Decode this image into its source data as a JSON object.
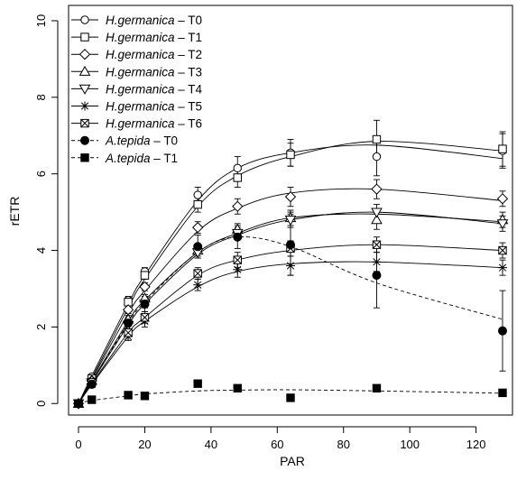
{
  "chart_data": {
    "type": "line",
    "title": "",
    "xlabel": "PAR",
    "ylabel": "rETR",
    "xlim": [
      -3,
      131
    ],
    "ylim": [
      -0.3,
      10.4
    ],
    "xticks": [
      0,
      20,
      40,
      60,
      80,
      100,
      120
    ],
    "yticks": [
      0,
      2,
      4,
      6,
      8,
      10
    ],
    "grid": false,
    "legend_position": "top-left",
    "x": [
      0,
      4,
      15,
      20,
      36,
      48,
      64,
      90,
      128
    ],
    "series": [
      {
        "name": "H.germanica – T0",
        "name_species": "H.germanica",
        "name_suffix": " – T0",
        "marker": "circle-open",
        "style": "points",
        "points": [
          [
            0,
            0
          ],
          [
            4,
            0.7
          ],
          [
            15,
            2.7
          ],
          [
            20,
            3.45
          ],
          [
            36,
            5.45
          ],
          [
            48,
            6.15
          ],
          [
            64,
            6.55
          ],
          [
            90,
            6.45
          ],
          [
            128,
            6.6
          ]
        ],
        "errors": [
          0,
          0.05,
          0.1,
          0.1,
          0.2,
          0.3,
          0.35,
          0.5,
          0.45
        ]
      },
      {
        "name": "H.germanica – T1",
        "name_species": "H.germanica",
        "name_suffix": " – T1",
        "marker": "square-open",
        "style": "points",
        "points": [
          [
            0,
            0
          ],
          [
            4,
            0.65
          ],
          [
            15,
            2.65
          ],
          [
            20,
            3.35
          ],
          [
            36,
            5.2
          ],
          [
            48,
            5.9
          ],
          [
            64,
            6.5
          ],
          [
            90,
            6.9
          ],
          [
            128,
            6.65
          ]
        ],
        "errors": [
          0,
          0.05,
          0.1,
          0.1,
          0.2,
          0.25,
          0.3,
          0.5,
          0.45
        ]
      },
      {
        "name": "H.germanica – T2",
        "name_species": "H.germanica",
        "name_suffix": " – T2",
        "marker": "diamond-open",
        "style": "points",
        "points": [
          [
            0,
            0
          ],
          [
            4,
            0.6
          ],
          [
            15,
            2.45
          ],
          [
            20,
            3.05
          ],
          [
            36,
            4.6
          ],
          [
            48,
            5.15
          ],
          [
            64,
            5.4
          ],
          [
            90,
            5.6
          ],
          [
            128,
            5.35
          ]
        ],
        "errors": [
          0,
          0.05,
          0.1,
          0.1,
          0.15,
          0.2,
          0.25,
          0.25,
          0.2
        ]
      },
      {
        "name": "H.germanica – T3",
        "name_species": "H.germanica",
        "name_suffix": " – T3",
        "marker": "triangle-up-open",
        "style": "points",
        "points": [
          [
            0,
            0
          ],
          [
            4,
            0.6
          ],
          [
            15,
            2.2
          ],
          [
            20,
            2.75
          ],
          [
            36,
            4.0
          ],
          [
            48,
            4.55
          ],
          [
            64,
            4.85
          ],
          [
            90,
            4.8
          ],
          [
            128,
            4.8
          ]
        ],
        "errors": [
          0,
          0.05,
          0.1,
          0.1,
          0.15,
          0.15,
          0.2,
          0.25,
          0.2
        ]
      },
      {
        "name": "H.germanica – T4",
        "name_species": "H.germanica",
        "name_suffix": " – T4",
        "marker": "triangle-down-open",
        "style": "points",
        "points": [
          [
            0,
            0
          ],
          [
            4,
            0.55
          ],
          [
            15,
            2.05
          ],
          [
            20,
            2.6
          ],
          [
            36,
            3.95
          ],
          [
            48,
            4.45
          ],
          [
            64,
            4.8
          ],
          [
            90,
            5.0
          ],
          [
            128,
            4.7
          ]
        ],
        "errors": [
          0,
          0.05,
          0.1,
          0.1,
          0.15,
          0.15,
          0.2,
          0.2,
          0.2
        ]
      },
      {
        "name": "H.germanica – T5",
        "name_species": "H.germanica",
        "name_suffix": " – T5",
        "marker": "asterisk",
        "style": "points",
        "points": [
          [
            0,
            0
          ],
          [
            4,
            0.5
          ],
          [
            15,
            1.75
          ],
          [
            20,
            2.15
          ],
          [
            36,
            3.1
          ],
          [
            48,
            3.5
          ],
          [
            64,
            3.6
          ],
          [
            90,
            3.7
          ],
          [
            128,
            3.55
          ]
        ],
        "errors": [
          0,
          0.05,
          0.1,
          0.15,
          0.15,
          0.2,
          0.25,
          0.25,
          0.2
        ]
      },
      {
        "name": "H.germanica – T6",
        "name_species": "H.germanica",
        "name_suffix": " – T6",
        "marker": "square-cross",
        "style": "points",
        "points": [
          [
            0,
            0
          ],
          [
            4,
            0.55
          ],
          [
            15,
            1.85
          ],
          [
            20,
            2.25
          ],
          [
            36,
            3.4
          ],
          [
            48,
            3.75
          ],
          [
            64,
            4.05
          ],
          [
            90,
            4.15
          ],
          [
            128,
            4.0
          ]
        ],
        "errors": [
          0,
          0.05,
          0.1,
          0.15,
          0.15,
          0.2,
          0.2,
          0.2,
          0.2
        ]
      },
      {
        "name": "A.tepida – T0",
        "name_species": "A.tepida",
        "name_suffix": " – T0",
        "marker": "circle-filled",
        "style": "points",
        "points": [
          [
            0,
            0
          ],
          [
            4,
            0.5
          ],
          [
            15,
            2.1
          ],
          [
            20,
            2.6
          ],
          [
            36,
            4.1
          ],
          [
            48,
            4.35
          ],
          [
            64,
            4.15
          ],
          [
            90,
            3.35
          ],
          [
            128,
            1.9
          ]
        ],
        "errors": [
          0,
          0.05,
          0.15,
          0.2,
          0.3,
          0.3,
          0.8,
          0.85,
          1.05
        ]
      },
      {
        "name": "A.tepida – T1",
        "name_species": "A.tepida",
        "name_suffix": " – T1",
        "marker": "square-filled",
        "style": "points",
        "points": [
          [
            0,
            0
          ],
          [
            4,
            0.1
          ],
          [
            15,
            0.22
          ],
          [
            20,
            0.2
          ],
          [
            36,
            0.52
          ],
          [
            48,
            0.4
          ],
          [
            64,
            0.15
          ],
          [
            90,
            0.4
          ],
          [
            128,
            0.28
          ]
        ],
        "errors": [
          0,
          0,
          0,
          0,
          0,
          0,
          0,
          0,
          0
        ]
      }
    ],
    "fitted_curves": [
      {
        "series": "H.germanica – T0",
        "line": "solid",
        "points": [
          [
            0,
            0
          ],
          [
            4,
            0.72
          ],
          [
            15,
            2.6
          ],
          [
            20,
            3.35
          ],
          [
            36,
            5.3
          ],
          [
            48,
            6.15
          ],
          [
            64,
            6.55
          ],
          [
            90,
            6.75
          ],
          [
            128,
            6.4
          ]
        ]
      },
      {
        "series": "H.germanica – T1",
        "line": "solid",
        "points": [
          [
            0,
            0
          ],
          [
            4,
            0.66
          ],
          [
            15,
            2.5
          ],
          [
            20,
            3.25
          ],
          [
            36,
            5.15
          ],
          [
            48,
            5.95
          ],
          [
            64,
            6.45
          ],
          [
            90,
            6.85
          ],
          [
            128,
            6.6
          ]
        ]
      },
      {
        "series": "H.germanica – T2",
        "line": "solid",
        "points": [
          [
            0,
            0
          ],
          [
            4,
            0.62
          ],
          [
            15,
            2.35
          ],
          [
            20,
            2.95
          ],
          [
            36,
            4.5
          ],
          [
            48,
            5.1
          ],
          [
            64,
            5.5
          ],
          [
            90,
            5.6
          ],
          [
            128,
            5.3
          ]
        ]
      },
      {
        "series": "H.germanica – T3",
        "line": "solid",
        "points": [
          [
            0,
            0
          ],
          [
            4,
            0.58
          ],
          [
            15,
            2.15
          ],
          [
            20,
            2.7
          ],
          [
            36,
            3.95
          ],
          [
            48,
            4.45
          ],
          [
            64,
            4.85
          ],
          [
            90,
            4.95
          ],
          [
            128,
            4.75
          ]
        ]
      },
      {
        "series": "H.germanica – T4",
        "line": "solid",
        "points": [
          [
            0,
            0
          ],
          [
            4,
            0.56
          ],
          [
            15,
            2.05
          ],
          [
            20,
            2.6
          ],
          [
            36,
            3.9
          ],
          [
            48,
            4.4
          ],
          [
            64,
            4.8
          ],
          [
            90,
            5.0
          ],
          [
            128,
            4.7
          ]
        ]
      },
      {
        "series": "H.germanica – T5",
        "line": "solid",
        "points": [
          [
            0,
            0
          ],
          [
            4,
            0.5
          ],
          [
            15,
            1.75
          ],
          [
            20,
            2.15
          ],
          [
            36,
            3.05
          ],
          [
            48,
            3.45
          ],
          [
            64,
            3.65
          ],
          [
            90,
            3.7
          ],
          [
            128,
            3.55
          ]
        ]
      },
      {
        "series": "H.germanica – T6",
        "line": "solid",
        "points": [
          [
            0,
            0
          ],
          [
            4,
            0.52
          ],
          [
            15,
            1.85
          ],
          [
            20,
            2.25
          ],
          [
            36,
            3.35
          ],
          [
            48,
            3.75
          ],
          [
            64,
            4.0
          ],
          [
            90,
            4.15
          ],
          [
            128,
            4.0
          ]
        ]
      },
      {
        "series": "A.tepida – T0",
        "line": "dashed",
        "points": [
          [
            0,
            0
          ],
          [
            4,
            0.55
          ],
          [
            15,
            2.1
          ],
          [
            20,
            2.65
          ],
          [
            36,
            3.95
          ],
          [
            48,
            4.35
          ],
          [
            64,
            4.1
          ],
          [
            90,
            3.15
          ],
          [
            128,
            2.2
          ]
        ]
      },
      {
        "series": "A.tepida – T1",
        "line": "dashed",
        "points": [
          [
            0,
            0
          ],
          [
            4,
            0.08
          ],
          [
            15,
            0.2
          ],
          [
            20,
            0.25
          ],
          [
            36,
            0.33
          ],
          [
            48,
            0.35
          ],
          [
            64,
            0.36
          ],
          [
            90,
            0.33
          ],
          [
            128,
            0.27
          ]
        ]
      }
    ]
  }
}
